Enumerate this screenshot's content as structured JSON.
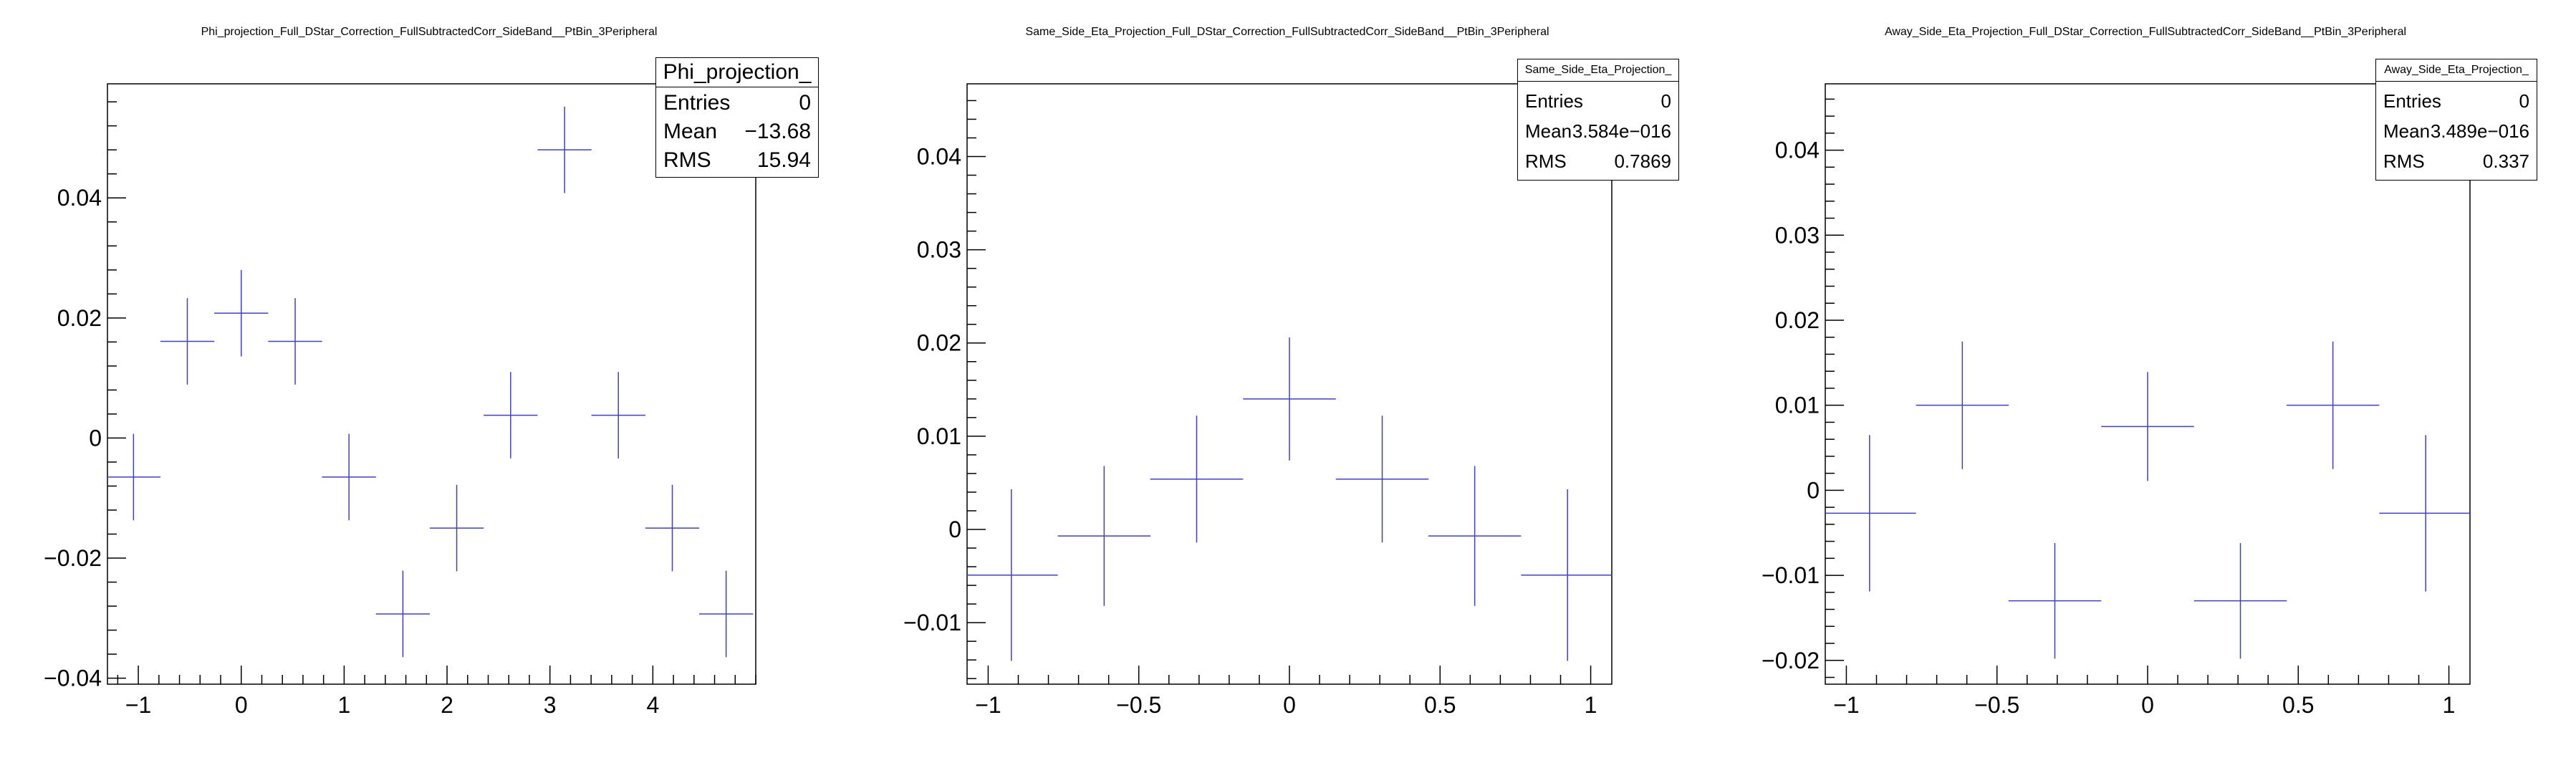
{
  "colors": {
    "marker": "#4040c0",
    "axis": "#000000",
    "background": "#ffffff"
  },
  "panels": [
    {
      "title": "Phi_projection_Full_DStar_Correction_FullSubtractedCorr_SideBand__PtBin_3Peripheral",
      "stats": {
        "name": "Phi_projection_",
        "entries_label": "Entries",
        "entries": "0",
        "mean_label": "Mean",
        "mean": "−13.68",
        "rms_label": "RMS",
        "rms": "15.94"
      }
    },
    {
      "title": "Same_Side_Eta_Projection_Full_DStar_Correction_FullSubtractedCorr_SideBand__PtBin_3Peripheral",
      "stats": {
        "name": "Same_Side_Eta_Projection_",
        "entries_label": "Entries",
        "entries": "0",
        "mean_label": "Mean",
        "mean": "3.584e−016",
        "rms_label": "RMS",
        "rms": "0.7869"
      }
    },
    {
      "title": "Away_Side_Eta_Projection_Full_DStar_Correction_FullSubtractedCorr_SideBand__PtBin_3Peripheral",
      "stats": {
        "name": "Away_Side_Eta_Projection_",
        "entries_label": "Entries",
        "entries": "0",
        "mean_label": "Mean",
        "mean": "3.489e−016",
        "rms_label": "RMS",
        "rms": "0.337"
      }
    }
  ],
  "chart_data": [
    {
      "type": "scatter",
      "title": "Phi_projection_Full_DStar_Correction_FullSubtractedCorr_SideBand__PtBin_3Peripheral",
      "xlabel": "",
      "ylabel": "",
      "xlim": [
        -1.3,
        5.0
      ],
      "ylim": [
        -0.041,
        0.059
      ],
      "xticks": [
        -1,
        0,
        1,
        2,
        3,
        4
      ],
      "xtick_labels": [
        "−1",
        "0",
        "1",
        "2",
        "3",
        "4"
      ],
      "yticks": [
        -0.04,
        -0.02,
        0,
        0.02,
        0.04
      ],
      "ytick_labels": [
        "−0.04",
        "−0.02",
        "0",
        "0.02",
        "0.04"
      ],
      "x_minor_step": 0.2,
      "y_minor_step": 0.004,
      "points": [
        {
          "x": -1.047,
          "y": -0.0065,
          "xerr": 0.262,
          "yerr": 0.0072
        },
        {
          "x": -0.524,
          "y": 0.0161,
          "xerr": 0.262,
          "yerr": 0.0072
        },
        {
          "x": 0.0,
          "y": 0.0208,
          "xerr": 0.262,
          "yerr": 0.0072
        },
        {
          "x": 0.524,
          "y": 0.0161,
          "xerr": 0.262,
          "yerr": 0.0072
        },
        {
          "x": 1.047,
          "y": -0.0065,
          "xerr": 0.262,
          "yerr": 0.0072
        },
        {
          "x": 1.571,
          "y": -0.0293,
          "xerr": 0.262,
          "yerr": 0.0072
        },
        {
          "x": 2.094,
          "y": -0.015,
          "xerr": 0.262,
          "yerr": 0.0072
        },
        {
          "x": 2.618,
          "y": 0.0038,
          "xerr": 0.262,
          "yerr": 0.0072
        },
        {
          "x": 3.142,
          "y": 0.048,
          "xerr": 0.262,
          "yerr": 0.0072
        },
        {
          "x": 3.665,
          "y": 0.0038,
          "xerr": 0.262,
          "yerr": 0.0072
        },
        {
          "x": 4.189,
          "y": -0.015,
          "xerr": 0.262,
          "yerr": 0.0072
        },
        {
          "x": 4.712,
          "y": -0.0293,
          "xerr": 0.262,
          "yerr": 0.0072
        }
      ]
    },
    {
      "type": "scatter",
      "title": "Same_Side_Eta_Projection_Full_DStar_Correction_FullSubtractedCorr_SideBand__PtBin_3Peripheral",
      "xlabel": "",
      "ylabel": "",
      "xlim": [
        -1.07,
        1.07
      ],
      "ylim": [
        -0.0166,
        0.0478
      ],
      "xticks": [
        -1,
        -0.5,
        0,
        0.5,
        1
      ],
      "xtick_labels": [
        "−1",
        "−0.5",
        "0",
        "0.5",
        "1"
      ],
      "yticks": [
        -0.01,
        0,
        0.01,
        0.02,
        0.03,
        0.04
      ],
      "ytick_labels": [
        "−0.01",
        "0",
        "0.01",
        "0.02",
        "0.03",
        "0.04"
      ],
      "x_minor_step": 0.1,
      "y_minor_step": 0.002,
      "points": [
        {
          "x": -0.923,
          "y": -0.0049,
          "xerr": 0.154,
          "yerr": 0.0092
        },
        {
          "x": -0.615,
          "y": -0.0007,
          "xerr": 0.154,
          "yerr": 0.0075
        },
        {
          "x": -0.308,
          "y": 0.0054,
          "xerr": 0.154,
          "yerr": 0.0068
        },
        {
          "x": 0.0,
          "y": 0.014,
          "xerr": 0.154,
          "yerr": 0.0066
        },
        {
          "x": 0.308,
          "y": 0.0054,
          "xerr": 0.154,
          "yerr": 0.0068
        },
        {
          "x": 0.615,
          "y": -0.0007,
          "xerr": 0.154,
          "yerr": 0.0075
        },
        {
          "x": 0.923,
          "y": -0.0049,
          "xerr": 0.154,
          "yerr": 0.0092
        }
      ]
    },
    {
      "type": "scatter",
      "title": "Away_Side_Eta_Projection_Full_DStar_Correction_FullSubtractedCorr_SideBand__PtBin_3Peripheral",
      "xlabel": "",
      "ylabel": "",
      "xlim": [
        -1.07,
        1.07
      ],
      "ylim": [
        -0.0228,
        0.0478
      ],
      "xticks": [
        -1,
        -0.5,
        0,
        0.5,
        1
      ],
      "xtick_labels": [
        "−1",
        "−0.5",
        "0",
        "0.5",
        "1"
      ],
      "yticks": [
        -0.02,
        -0.01,
        0,
        0.01,
        0.02,
        0.03,
        0.04
      ],
      "ytick_labels": [
        "−0.02",
        "−0.01",
        "0",
        "0.01",
        "0.02",
        "0.03",
        "0.04"
      ],
      "x_minor_step": 0.1,
      "y_minor_step": 0.002,
      "points": [
        {
          "x": -0.923,
          "y": -0.0027,
          "xerr": 0.154,
          "yerr": 0.0092
        },
        {
          "x": -0.615,
          "y": 0.01,
          "xerr": 0.154,
          "yerr": 0.0075
        },
        {
          "x": -0.308,
          "y": -0.013,
          "xerr": 0.154,
          "yerr": 0.0068
        },
        {
          "x": 0.0,
          "y": 0.0075,
          "xerr": 0.154,
          "yerr": 0.0064
        },
        {
          "x": 0.308,
          "y": -0.013,
          "xerr": 0.154,
          "yerr": 0.0068
        },
        {
          "x": 0.615,
          "y": 0.01,
          "xerr": 0.154,
          "yerr": 0.0075
        },
        {
          "x": 0.923,
          "y": -0.0027,
          "xerr": 0.154,
          "yerr": 0.0092
        }
      ]
    }
  ]
}
